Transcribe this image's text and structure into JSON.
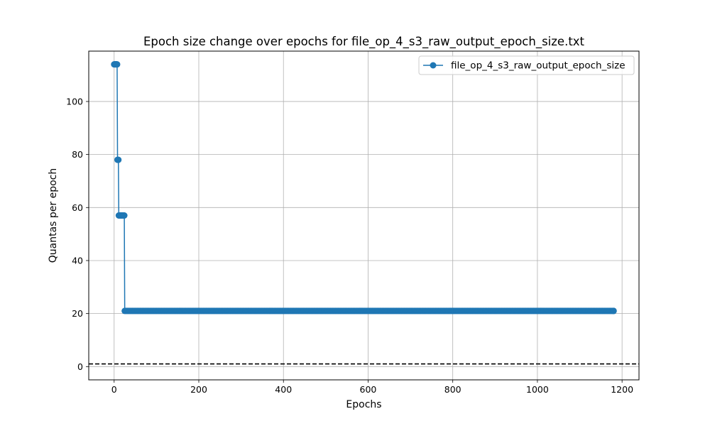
{
  "chart_data": {
    "type": "line",
    "title": "Epoch size change over epochs for file_op_4_s3_raw_output_epoch_size.txt",
    "xlabel": "Epochs",
    "ylabel": "Quantas per epoch",
    "xlim": [
      -60,
      1240
    ],
    "ylim": [
      -5,
      119
    ],
    "xticks": [
      0,
      200,
      400,
      600,
      800,
      1000,
      1200
    ],
    "yticks": [
      0,
      20,
      40,
      60,
      80,
      100
    ],
    "grid": true,
    "legend_position": "upper right",
    "colors": {
      "series": "#1f77b4",
      "reference_line": "#000000",
      "grid": "#b0b0b0"
    },
    "reference_line": {
      "y": 1,
      "style": "dashed"
    },
    "series": [
      {
        "name": "file_op_4_s3_raw_output_epoch_size",
        "marker": "circle",
        "points": [
          [
            0,
            114
          ],
          [
            1,
            114
          ],
          [
            2,
            114
          ],
          [
            3,
            114
          ],
          [
            4,
            114
          ],
          [
            5,
            114
          ],
          [
            6,
            114
          ],
          [
            7,
            114
          ],
          [
            8,
            78
          ],
          [
            9,
            78
          ],
          [
            10,
            78
          ],
          [
            11,
            57
          ],
          [
            12,
            57
          ],
          [
            13,
            57
          ],
          [
            14,
            57
          ],
          [
            15,
            57
          ],
          [
            16,
            57
          ],
          [
            17,
            57
          ],
          [
            18,
            57
          ],
          [
            19,
            57
          ],
          [
            20,
            57
          ],
          [
            21,
            57
          ],
          [
            22,
            57
          ],
          [
            23,
            57
          ],
          [
            24,
            57
          ],
          [
            25,
            21
          ],
          [
            1180,
            21
          ]
        ],
        "dense_step": 3
      }
    ]
  }
}
